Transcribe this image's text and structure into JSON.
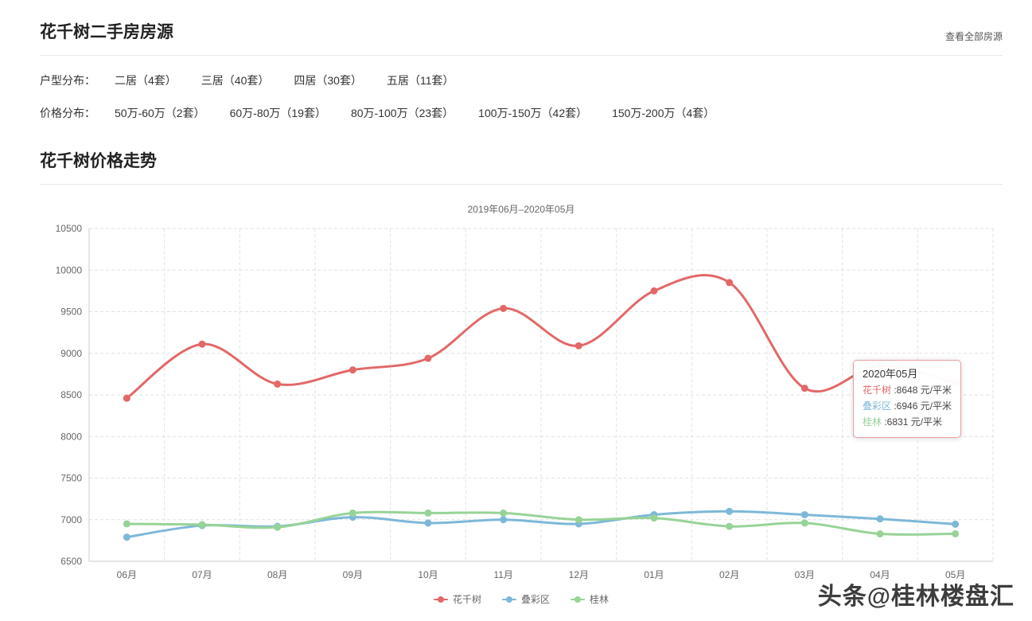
{
  "header": {
    "title": "花千树二手房房源",
    "view_all": "查看全部房源"
  },
  "filters": {
    "layout_label": "户型分布：",
    "layout_items": [
      "二居（4套）",
      "三居（40套）",
      "四居（30套）",
      "五居（11套）"
    ],
    "price_label": "价格分布：",
    "price_items": [
      "50万-60万（2套）",
      "60万-80万（19套）",
      "80万-100万（23套）",
      "100万-150万（42套）",
      "150万-200万（4套）"
    ]
  },
  "trend_section": {
    "title": "花千树价格走势"
  },
  "chart_data": {
    "type": "line",
    "title": "2019年06月–2020年05月",
    "categories": [
      "06月",
      "07月",
      "08月",
      "09月",
      "10月",
      "11月",
      "12月",
      "01月",
      "02月",
      "03月",
      "04月",
      "05月"
    ],
    "series": [
      {
        "name": "花千树",
        "color": "#e26868",
        "values": [
          8460,
          9110,
          8630,
          8800,
          8940,
          9540,
          9090,
          9750,
          9850,
          8580,
          8850,
          8648
        ]
      },
      {
        "name": "叠彩区",
        "color": "#7db8d8",
        "values": [
          6790,
          6930,
          6920,
          7030,
          6960,
          7000,
          6950,
          7060,
          7100,
          7060,
          7010,
          6946
        ]
      },
      {
        "name": "桂林",
        "color": "#97d397",
        "values": [
          6950,
          6940,
          6910,
          7080,
          7080,
          7080,
          7000,
          7020,
          6920,
          6960,
          6830,
          6831
        ]
      }
    ],
    "ylim": [
      6500,
      10500
    ],
    "ytick_step": 500,
    "grid": true,
    "legend_position": "bottom"
  },
  "tooltip": {
    "title": "2020年05月",
    "unit": "元/平米",
    "rows": [
      {
        "name": "花千树",
        "value": "8648"
      },
      {
        "name": "叠彩区",
        "value": "6946"
      },
      {
        "name": "桂林",
        "value": "6831"
      }
    ]
  },
  "watermark": "头条@桂林楼盘汇"
}
